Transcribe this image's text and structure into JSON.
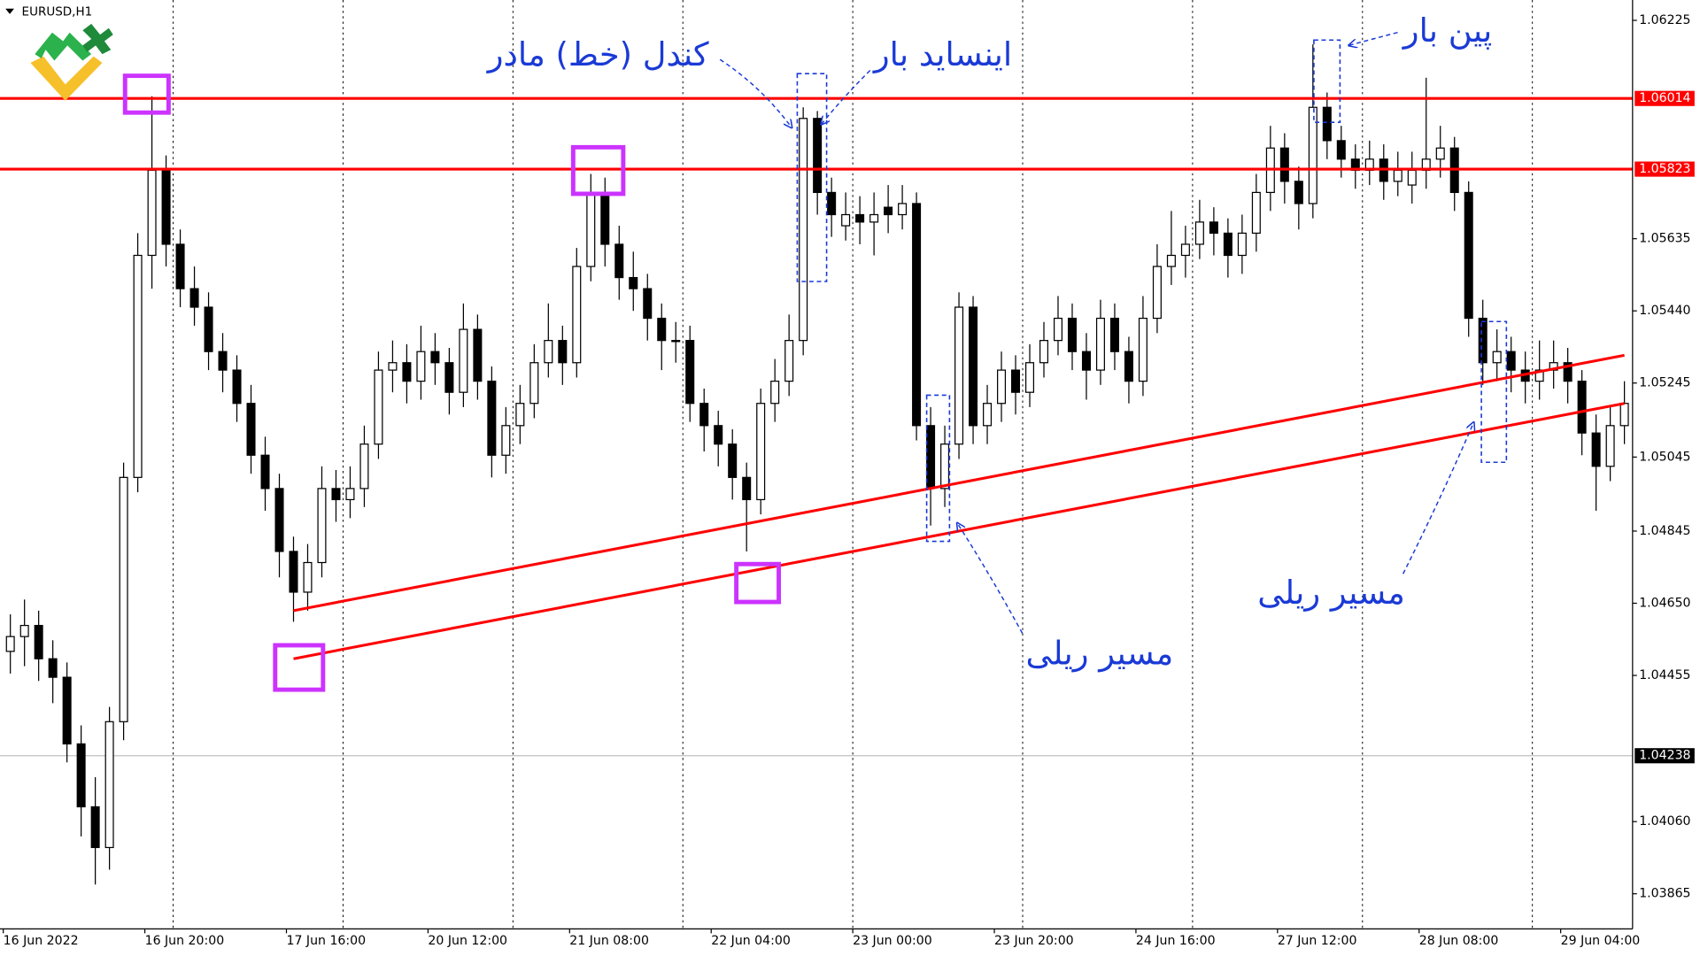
{
  "chart_data": {
    "type": "candlestick",
    "title": "EURUSD,H1",
    "up_color": "#ffffff",
    "down_color": "#000000",
    "ylim": [
      1.0377,
      1.0628
    ],
    "yticks": [
      1.06225,
      1.05635,
      {
        "value": 1.0544,
        "label": "1.05440"
      },
      1.05245,
      1.05045,
      1.04845,
      {
        "value": 1.0465,
        "label": "1.04650"
      },
      1.04455,
      {
        "value": 1.0406,
        "label": "1.04060"
      },
      1.03865
    ],
    "levels": [
      1.06014,
      1.05823
    ],
    "level_color": "#ff0000",
    "current_price": 1.04238,
    "trendlines": [
      {
        "x": [
          20,
          114
        ],
        "y": [
          1.0463,
          1.0532
        ]
      },
      {
        "x": [
          20,
          114
        ],
        "y": [
          1.045,
          1.0519
        ]
      }
    ],
    "annotations": [
      "کندل (خط) مادر",
      "اینساید بار",
      "پین بار",
      "مسیر ریلی",
      "مسیر ریلی"
    ],
    "categories": [
      "16 Jun 2022",
      null,
      null,
      null,
      null,
      null,
      null,
      null,
      null,
      null,
      "16 Jun 20:00",
      null,
      null,
      null,
      null,
      null,
      null,
      null,
      null,
      null,
      "17 Jun 16:00",
      null,
      null,
      null,
      null,
      null,
      null,
      null,
      null,
      null,
      "20 Jun 12:00",
      null,
      null,
      null,
      null,
      null,
      null,
      null,
      null,
      null,
      "21 Jun 08:00",
      null,
      null,
      null,
      null,
      null,
      null,
      null,
      null,
      null,
      "22 Jun 04:00",
      null,
      null,
      null,
      null,
      null,
      null,
      null,
      null,
      null,
      "23 Jun 00:00",
      null,
      null,
      null,
      null,
      null,
      null,
      null,
      null,
      null,
      "23 Jun 20:00",
      null,
      null,
      null,
      null,
      null,
      null,
      null,
      null,
      null,
      "24 Jun 16:00",
      null,
      null,
      null,
      null,
      null,
      null,
      null,
      null,
      null,
      "27 Jun 12:00",
      null,
      null,
      null,
      null,
      null,
      null,
      null,
      null,
      null,
      "28 Jun 08:00",
      null,
      null,
      null,
      null,
      null,
      null,
      null,
      null,
      null,
      "29 Jun 04:00",
      null,
      null,
      null,
      null
    ],
    "ohlc": [
      [
        1.0452,
        1.0462,
        1.0446,
        1.0456
      ],
      [
        1.0456,
        1.0466,
        1.0448,
        1.0459
      ],
      [
        1.0459,
        1.0463,
        1.0444,
        1.045
      ],
      [
        1.045,
        1.0455,
        1.0438,
        1.0445
      ],
      [
        1.0445,
        1.0449,
        1.0422,
        1.0427
      ],
      [
        1.0427,
        1.0432,
        1.0402,
        1.041
      ],
      [
        1.041,
        1.0418,
        1.0389,
        1.0399
      ],
      [
        1.0399,
        1.0437,
        1.0393,
        1.0433
      ],
      [
        1.0433,
        1.0503,
        1.0428,
        1.0499
      ],
      [
        1.0499,
        1.0565,
        1.0495,
        1.0559
      ],
      [
        1.0559,
        1.0602,
        1.055,
        1.0582
      ],
      [
        1.0582,
        1.0586,
        1.0556,
        1.0562
      ],
      [
        1.0562,
        1.0566,
        1.0545,
        1.055
      ],
      [
        1.055,
        1.0556,
        1.054,
        1.0545
      ],
      [
        1.0545,
        1.0549,
        1.0528,
        1.0533
      ],
      [
        1.0533,
        1.0538,
        1.0522,
        1.0528
      ],
      [
        1.0528,
        1.0532,
        1.0514,
        1.0519
      ],
      [
        1.0519,
        1.0524,
        1.05,
        1.0505
      ],
      [
        1.0505,
        1.051,
        1.049,
        1.0496
      ],
      [
        1.0496,
        1.05,
        1.0472,
        1.0479
      ],
      [
        1.0479,
        1.0483,
        1.046,
        1.0468
      ],
      [
        1.0468,
        1.0481,
        1.0463,
        1.0476
      ],
      [
        1.0476,
        1.0502,
        1.0472,
        1.0496
      ],
      [
        1.0496,
        1.0501,
        1.0487,
        1.0493
      ],
      [
        1.0493,
        1.0502,
        1.0488,
        1.0496
      ],
      [
        1.0496,
        1.0513,
        1.0491,
        1.0508
      ],
      [
        1.0508,
        1.0533,
        1.0504,
        1.0528
      ],
      [
        1.0528,
        1.0536,
        1.0522,
        1.053
      ],
      [
        1.053,
        1.0535,
        1.0519,
        1.0525
      ],
      [
        1.0525,
        1.054,
        1.052,
        1.0533
      ],
      [
        1.0533,
        1.0538,
        1.0524,
        1.053
      ],
      [
        1.053,
        1.0534,
        1.0516,
        1.0522
      ],
      [
        1.0522,
        1.0546,
        1.0518,
        1.0539
      ],
      [
        1.0539,
        1.0543,
        1.052,
        1.0525
      ],
      [
        1.0525,
        1.0529,
        1.0499,
        1.0505
      ],
      [
        1.0505,
        1.0518,
        1.05,
        1.0513
      ],
      [
        1.0513,
        1.0524,
        1.0508,
        1.0519
      ],
      [
        1.0519,
        1.0535,
        1.0515,
        1.053
      ],
      [
        1.053,
        1.0546,
        1.0526,
        1.0536
      ],
      [
        1.0536,
        1.054,
        1.0524,
        1.053
      ],
      [
        1.053,
        1.0561,
        1.0526,
        1.0556
      ],
      [
        1.0556,
        1.0581,
        1.0552,
        1.0576
      ],
      [
        1.0576,
        1.058,
        1.0556,
        1.0562
      ],
      [
        1.0562,
        1.0567,
        1.0547,
        1.0553
      ],
      [
        1.0553,
        1.056,
        1.0544,
        1.055
      ],
      [
        1.055,
        1.0554,
        1.0536,
        1.0542
      ],
      [
        1.0542,
        1.0546,
        1.0528,
        1.0536
      ],
      [
        1.0536,
        1.0541,
        1.053,
        1.0536
      ],
      [
        1.0536,
        1.054,
        1.0514,
        1.0519
      ],
      [
        1.0519,
        1.0523,
        1.0506,
        1.0513
      ],
      [
        1.0513,
        1.0517,
        1.0502,
        1.0508
      ],
      [
        1.0508,
        1.0512,
        1.0493,
        1.0499
      ],
      [
        1.0499,
        1.0503,
        1.0479,
        1.0493
      ],
      [
        1.0493,
        1.0523,
        1.0489,
        1.0519
      ],
      [
        1.0519,
        1.0531,
        1.0514,
        1.0525
      ],
      [
        1.0525,
        1.0543,
        1.0521,
        1.0536
      ],
      [
        1.0536,
        1.0599,
        1.0532,
        1.0596
      ],
      [
        1.0596,
        1.0598,
        1.057,
        1.0576
      ],
      [
        1.0576,
        1.058,
        1.0564,
        1.057
      ],
      [
        1.0567,
        1.0576,
        1.0563,
        1.057
      ],
      [
        1.057,
        1.0575,
        1.0562,
        1.0568
      ],
      [
        1.0568,
        1.0576,
        1.0559,
        1.057
      ],
      [
        1.0572,
        1.0578,
        1.0565,
        1.057
      ],
      [
        1.057,
        1.0578,
        1.0566,
        1.0573
      ],
      [
        1.0573,
        1.0576,
        1.0509,
        1.0513
      ],
      [
        1.0513,
        1.0518,
        1.0486,
        1.0496
      ],
      [
        1.0496,
        1.0513,
        1.0491,
        1.0508
      ],
      [
        1.0508,
        1.0549,
        1.0504,
        1.0545
      ],
      [
        1.0545,
        1.0548,
        1.0508,
        1.0513
      ],
      [
        1.0513,
        1.0524,
        1.0508,
        1.0519
      ],
      [
        1.0519,
        1.0533,
        1.0514,
        1.0528
      ],
      [
        1.0528,
        1.0532,
        1.0516,
        1.0522
      ],
      [
        1.0522,
        1.0535,
        1.0518,
        1.053
      ],
      [
        1.053,
        1.0541,
        1.0526,
        1.0536
      ],
      [
        1.0536,
        1.0548,
        1.0532,
        1.0542
      ],
      [
        1.0542,
        1.0546,
        1.0528,
        1.0533
      ],
      [
        1.0533,
        1.0538,
        1.052,
        1.0528
      ],
      [
        1.0528,
        1.0547,
        1.0524,
        1.0542
      ],
      [
        1.0542,
        1.0546,
        1.0528,
        1.0533
      ],
      [
        1.0533,
        1.0537,
        1.0519,
        1.0525
      ],
      [
        1.0525,
        1.0548,
        1.0521,
        1.0542
      ],
      [
        1.0542,
        1.0562,
        1.0538,
        1.0556
      ],
      [
        1.0556,
        1.0571,
        1.0551,
        1.0559
      ],
      [
        1.0559,
        1.0567,
        1.0553,
        1.0562
      ],
      [
        1.0562,
        1.0574,
        1.0558,
        1.0568
      ],
      [
        1.0568,
        1.0572,
        1.0559,
        1.0565
      ],
      [
        1.0565,
        1.0569,
        1.0553,
        1.0559
      ],
      [
        1.0559,
        1.057,
        1.0554,
        1.0565
      ],
      [
        1.0565,
        1.0581,
        1.056,
        1.0576
      ],
      [
        1.0576,
        1.0594,
        1.0571,
        1.0588
      ],
      [
        1.0588,
        1.0592,
        1.0573,
        1.0579
      ],
      [
        1.0579,
        1.0583,
        1.0566,
        1.0573
      ],
      [
        1.0573,
        1.0616,
        1.0569,
        1.0599
      ],
      [
        1.0599,
        1.0603,
        1.0585,
        1.059
      ],
      [
        1.059,
        1.0594,
        1.058,
        1.0585
      ],
      [
        1.0585,
        1.0589,
        1.0577,
        1.0582
      ],
      [
        1.0582,
        1.059,
        1.0578,
        1.0585
      ],
      [
        1.0585,
        1.0589,
        1.0574,
        1.0579
      ],
      [
        1.0579,
        1.0587,
        1.0575,
        1.0582
      ],
      [
        1.0578,
        1.0587,
        1.0573,
        1.0582
      ],
      [
        1.0582,
        1.0607,
        1.0577,
        1.0585
      ],
      [
        1.0585,
        1.0594,
        1.058,
        1.0588
      ],
      [
        1.0588,
        1.0591,
        1.0571,
        1.0576
      ],
      [
        1.0576,
        1.0579,
        1.0537,
        1.0542
      ],
      [
        1.0542,
        1.0547,
        1.0524,
        1.053
      ],
      [
        1.053,
        1.0539,
        1.0525,
        1.0533
      ],
      [
        1.0533,
        1.0537,
        1.0522,
        1.0528
      ],
      [
        1.0528,
        1.0533,
        1.0519,
        1.0525
      ],
      [
        1.0525,
        1.0536,
        1.052,
        1.0528
      ],
      [
        1.0528,
        1.0536,
        1.0523,
        1.053
      ],
      [
        1.053,
        1.0534,
        1.0519,
        1.0525
      ],
      [
        1.0525,
        1.0528,
        1.0505,
        1.0511
      ],
      [
        1.0511,
        1.0516,
        1.049,
        1.0502
      ],
      [
        1.0502,
        1.0518,
        1.0498,
        1.0513
      ],
      [
        1.0513,
        1.0525,
        1.0508,
        1.0519
      ]
    ]
  }
}
